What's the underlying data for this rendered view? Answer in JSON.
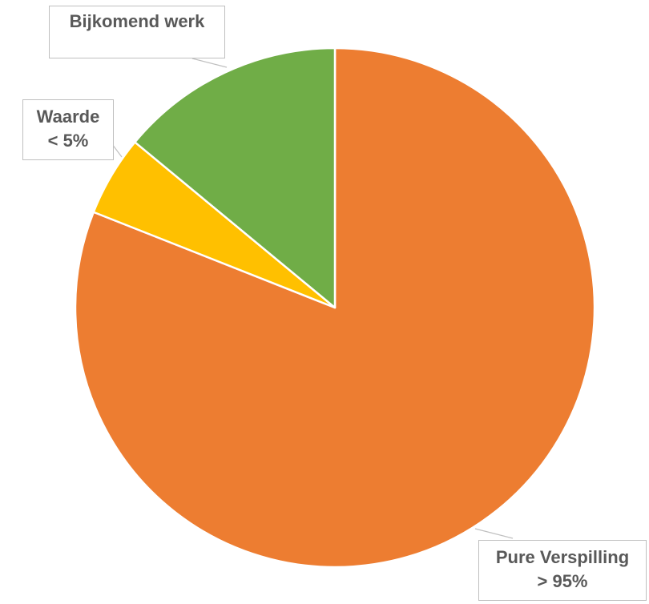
{
  "chart_data": {
    "type": "pie",
    "start_angle_deg": 0,
    "direction": "clockwise",
    "slices": [
      {
        "label": "Pure Verspilling",
        "value_label": "> 95%",
        "value": 81,
        "color": "#ED7D31"
      },
      {
        "label": "Waarde",
        "value_label": "< 5%",
        "value": 5,
        "color": "#FFC000"
      },
      {
        "label": "Bijkomend werk",
        "value_label": "",
        "value": 14,
        "color": "#70AD47"
      }
    ],
    "legend": "none"
  }
}
